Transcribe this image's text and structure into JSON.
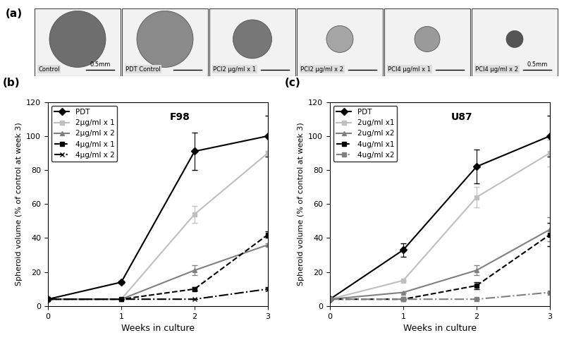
{
  "panel_a": {
    "panel": "(a)",
    "images": [
      {
        "caption": "Control",
        "scale_label": "0.5mm"
      },
      {
        "caption": "PDT Control"
      },
      {
        "caption": "PCI2 µg/ml x 1"
      },
      {
        "caption": "PCI2 µg/ml x 2"
      },
      {
        "caption": "PCI4 µg/ml x 1"
      },
      {
        "caption": "PCI4 µg/ml x 2",
        "scale_label": "0.5mm"
      }
    ]
  },
  "chart_data": [
    {
      "type": "line",
      "panel": "(b)",
      "title": "F98",
      "x_label": "Weeks in culture",
      "y_label": "Spheroid volume (% of control at week 3)",
      "x": [
        0,
        1,
        2,
        3
      ],
      "xlim": [
        0,
        3
      ],
      "xticks": [
        0,
        1,
        2,
        3
      ],
      "ylim": [
        0,
        120
      ],
      "yticks": [
        0,
        20,
        40,
        60,
        80,
        100,
        120
      ],
      "legend": "upper left",
      "series": [
        {
          "name": "PDT",
          "color": "#000000",
          "marker": "diamond",
          "line_style": "solid",
          "values": [
            4,
            14,
            91,
            100
          ],
          "errors": [
            0,
            1,
            11,
            12
          ]
        },
        {
          "name": "2µg/ml x 1",
          "color": "#bfbfbf",
          "marker": "square",
          "line_style": "solid",
          "values": [
            4,
            4,
            54,
            90
          ],
          "errors": [
            0,
            0,
            5,
            1
          ]
        },
        {
          "name": "2µg/ml x 2",
          "color": "#808080",
          "marker": "triangle",
          "line_style": "solid",
          "values": [
            4,
            4,
            21,
            36
          ],
          "errors": [
            0,
            0,
            3,
            1
          ]
        },
        {
          "name": "4µg/ml x 1",
          "color": "#000000",
          "marker": "square",
          "line_style": "dashed",
          "values": [
            4,
            4,
            10,
            42
          ],
          "errors": [
            0,
            0,
            1,
            2
          ]
        },
        {
          "name": "4µg/ml x 2",
          "color": "#000000",
          "marker": "x",
          "line_style": "dashdot",
          "values": [
            4,
            4,
            4,
            10
          ],
          "errors": [
            0,
            0,
            0,
            1
          ]
        }
      ]
    },
    {
      "type": "line",
      "panel": "(c)",
      "title": "U87",
      "x_label": "Weeks in culture",
      "y_label": "Spheroid volume (% of control at week 3)",
      "x": [
        0,
        1,
        2,
        3
      ],
      "xlim": [
        0,
        3
      ],
      "xticks": [
        0,
        1,
        2,
        3
      ],
      "ylim": [
        0,
        120
      ],
      "yticks": [
        0,
        20,
        40,
        60,
        80,
        100,
        120
      ],
      "legend": "upper left",
      "series": [
        {
          "name": "PDT",
          "color": "#000000",
          "marker": "diamond",
          "line_style": "solid",
          "values": [
            4,
            33,
            82,
            100
          ],
          "errors": [
            0,
            4,
            10,
            12
          ]
        },
        {
          "name": "2ug/ml x1",
          "color": "#bfbfbf",
          "marker": "square",
          "line_style": "solid",
          "values": [
            4,
            15,
            64,
            90
          ],
          "errors": [
            0,
            0,
            6,
            8
          ]
        },
        {
          "name": "2ug/ml x2",
          "color": "#808080",
          "marker": "triangle",
          "line_style": "solid",
          "values": [
            4,
            8,
            21,
            45
          ],
          "errors": [
            0,
            0,
            3,
            7
          ]
        },
        {
          "name": "4ug/ml x1",
          "color": "#000000",
          "marker": "square",
          "line_style": "dashed",
          "values": [
            4,
            4,
            12,
            42
          ],
          "errors": [
            0,
            0,
            2,
            7
          ]
        },
        {
          "name": "4ug/ml x2",
          "color": "#808080",
          "marker": "square",
          "line_style": "dashdot",
          "values": [
            4,
            4,
            4,
            8
          ],
          "errors": [
            0,
            0,
            0,
            0
          ]
        }
      ]
    }
  ]
}
